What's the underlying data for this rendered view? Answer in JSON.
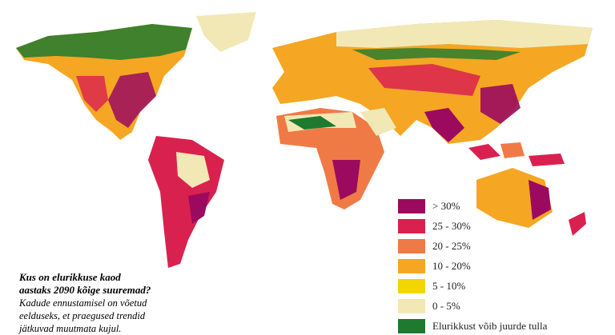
{
  "title_lines": [
    "Kus on elurikkuse kaod",
    "aastaks 2090 kõige suuremad?"
  ],
  "description_lines": [
    "Kadude ennustamisel on võetud",
    "eelduseks, et praegused trendid",
    "jätkuvad muutmata kujul."
  ],
  "legend": [
    {
      "label": "> 30%",
      "color": "#9b0a5e"
    },
    {
      "label": "25 - 30%",
      "color": "#d9214f"
    },
    {
      "label": "20 - 25%",
      "color": "#f07a45"
    },
    {
      "label": "10 - 20%",
      "color": "#f5a623"
    },
    {
      "label": "5 - 10%",
      "color": "#f2d600"
    },
    {
      "label": "0 - 5%",
      "color": "#f2e8b5"
    },
    {
      "label": "Elurikkust võib juurde tulla",
      "color": "#1e7a2e"
    }
  ]
}
